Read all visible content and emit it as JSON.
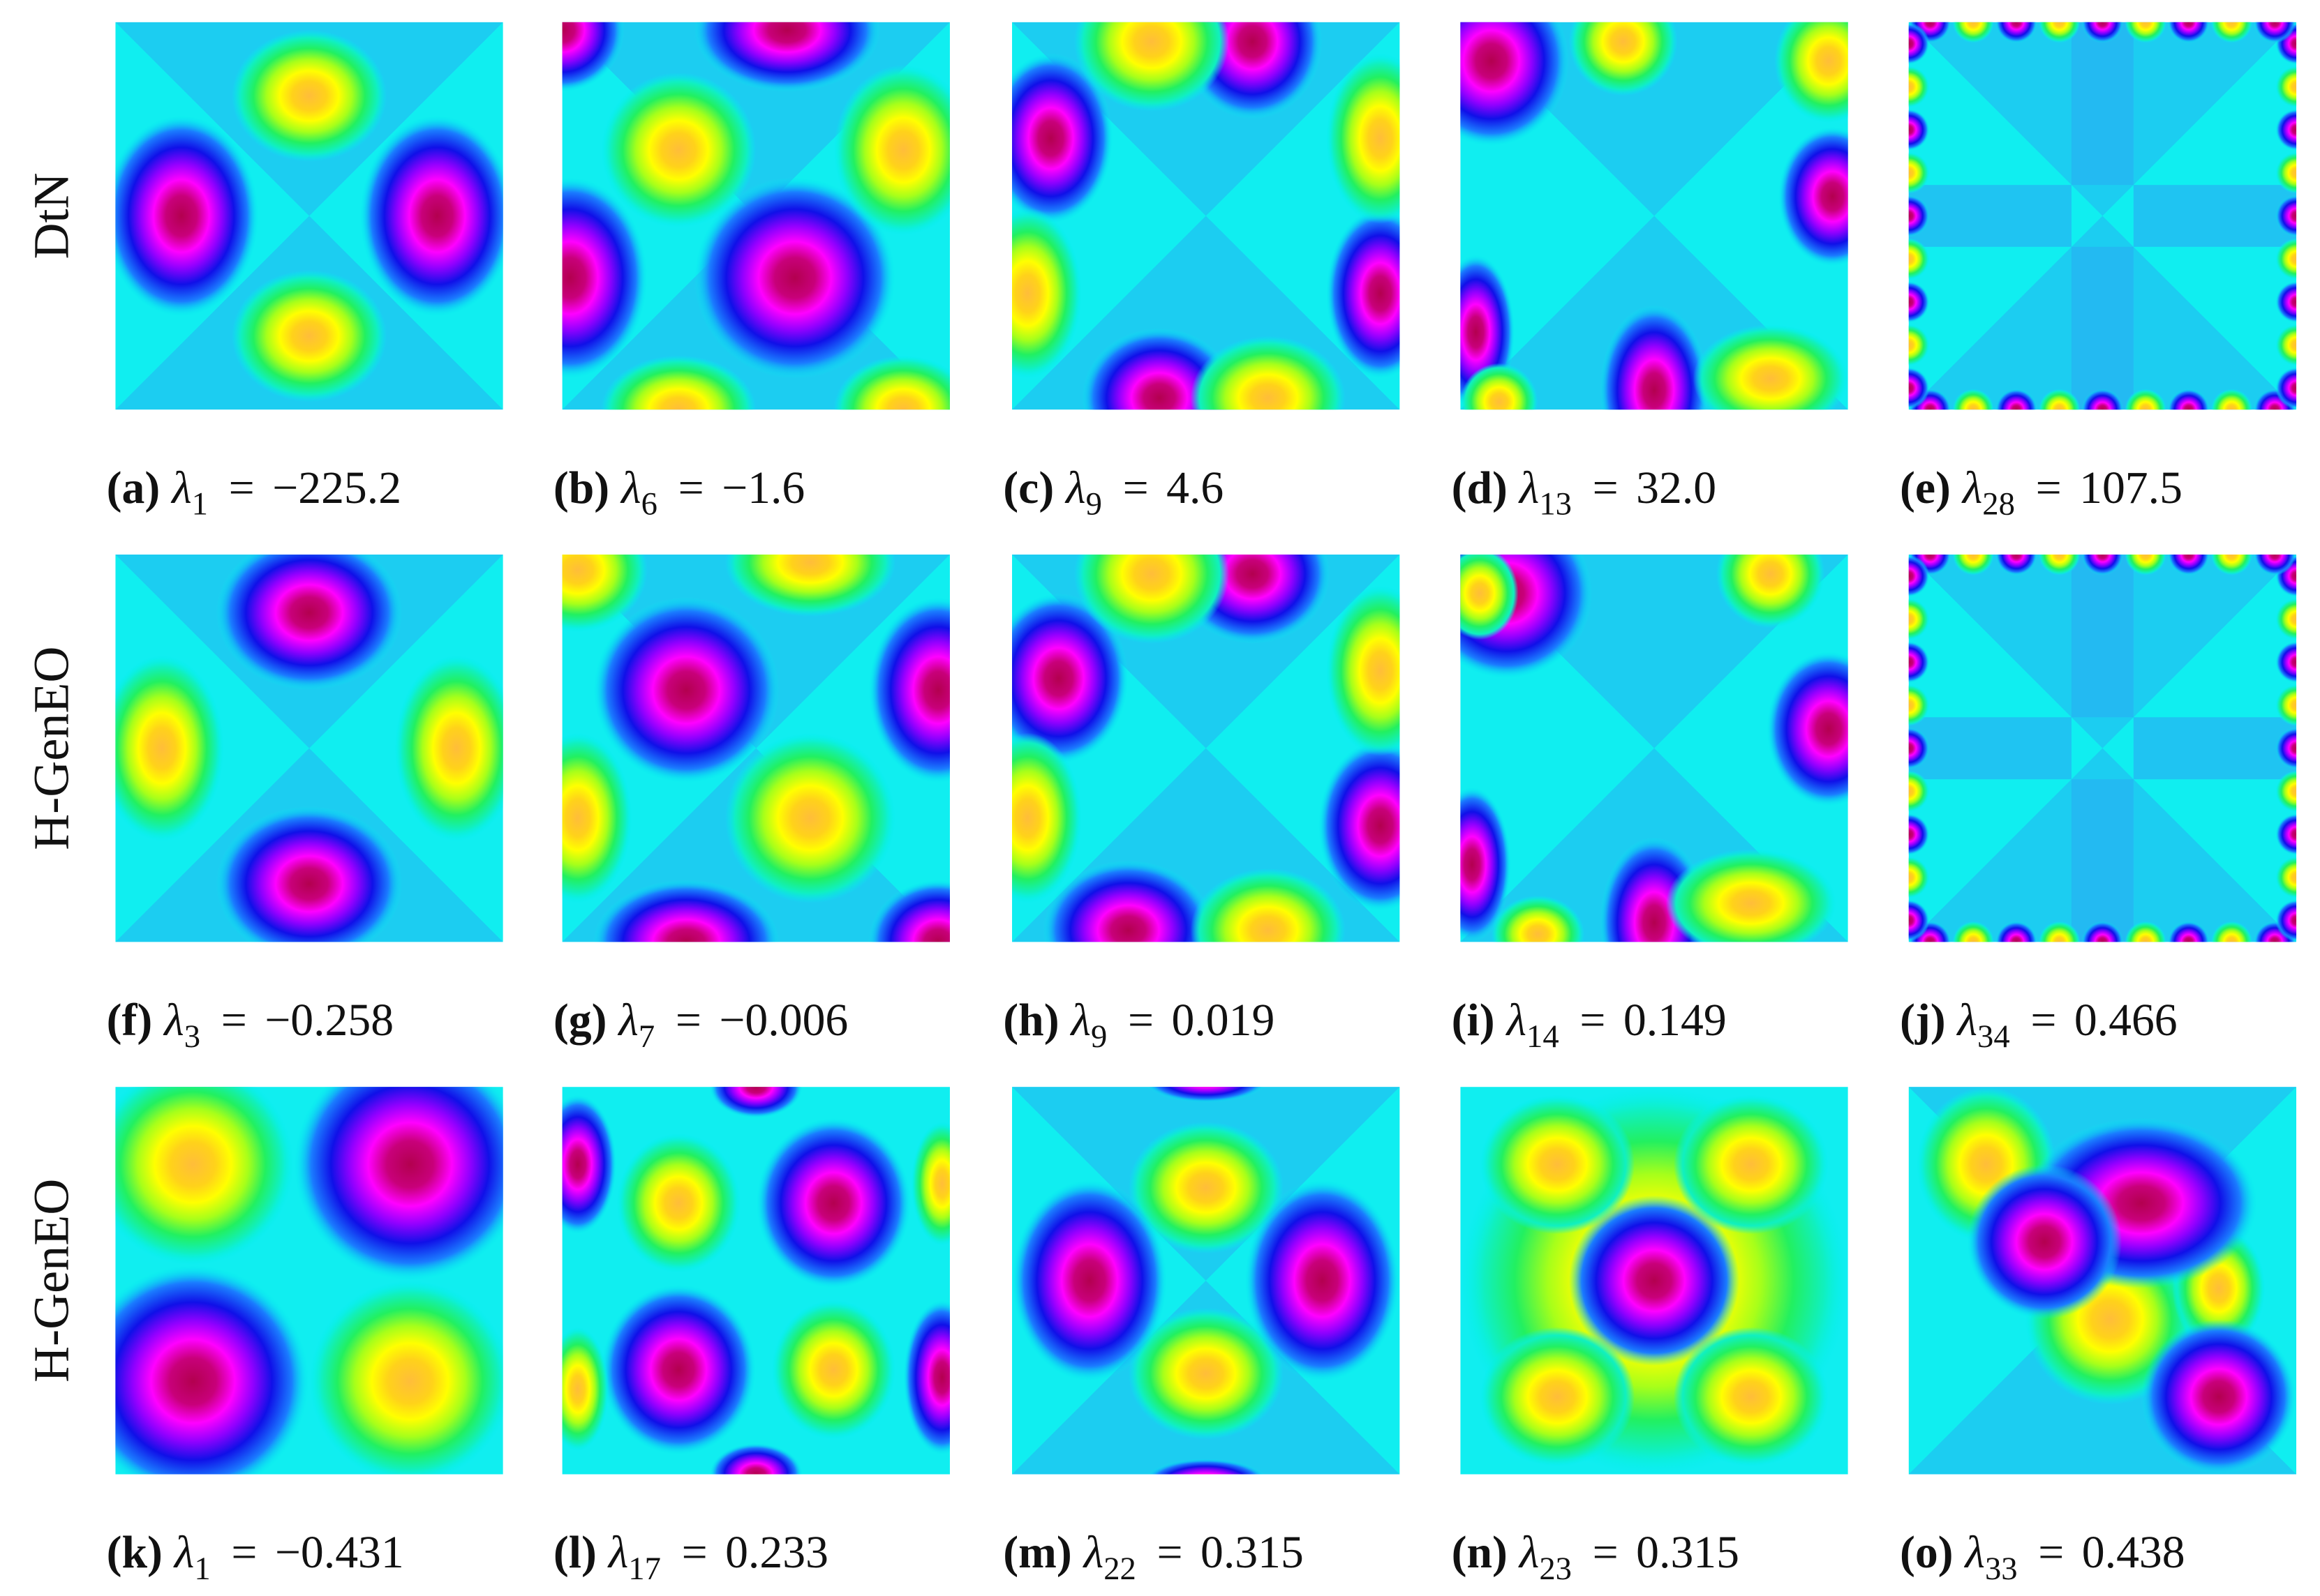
{
  "row_labels": [
    "DtN",
    "H-GenEO",
    "H-GenEO"
  ],
  "caption_symbol": "λ",
  "caption_relation": "=",
  "panels": [
    {
      "label": "(a)",
      "index": "1",
      "value": "−225.2"
    },
    {
      "label": "(b)",
      "index": "6",
      "value": "−1.6"
    },
    {
      "label": "(c)",
      "index": "9",
      "value": "4.6"
    },
    {
      "label": "(d)",
      "index": "13",
      "value": "32.0"
    },
    {
      "label": "(e)",
      "index": "28",
      "value": "107.5"
    },
    {
      "label": "(f)",
      "index": "3",
      "value": "−0.258"
    },
    {
      "label": "(g)",
      "index": "7",
      "value": "−0.006"
    },
    {
      "label": "(h)",
      "index": "9",
      "value": "0.019"
    },
    {
      "label": "(i)",
      "index": "14",
      "value": "0.149"
    },
    {
      "label": "(j)",
      "index": "34",
      "value": "0.466"
    },
    {
      "label": "(k)",
      "index": "1",
      "value": "−0.431"
    },
    {
      "label": "(l)",
      "index": "17",
      "value": "0.233"
    },
    {
      "label": "(m)",
      "index": "22",
      "value": "0.315"
    },
    {
      "label": "(n)",
      "index": "23",
      "value": "0.315"
    },
    {
      "label": "(o)",
      "index": "33",
      "value": "0.438"
    }
  ]
}
